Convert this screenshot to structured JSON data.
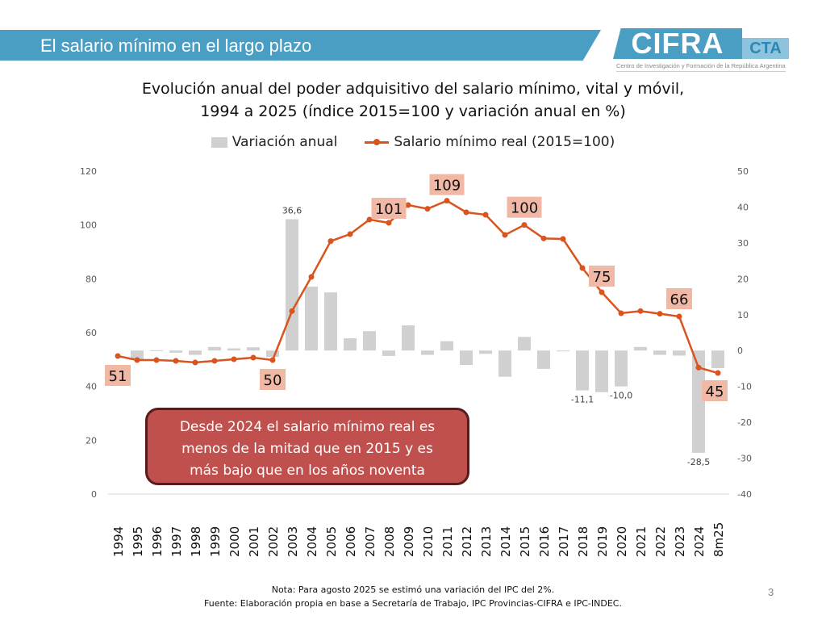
{
  "header": {
    "banner_title": "El salario mínimo en el largo plazo",
    "logo_text": "CIFRA",
    "logo_suffix": "CTA",
    "logo_subtitle": "Centro de Investigación y Formación de la República Argentina"
  },
  "chart_data": {
    "type": "bar+line",
    "title_line1": "Evolución anual del poder adquisitivo del salario mínimo, vital y móvil,",
    "title_line2": "1994 a 2025 (índice 2015=100 y variación anual en %)",
    "legend": {
      "bar": "Variación anual",
      "line": "Salario mínimo real (2015=100)"
    },
    "legend_position": "top",
    "categories": [
      "1994",
      "1995",
      "1996",
      "1997",
      "1998",
      "1999",
      "2000",
      "2001",
      "2002",
      "2003",
      "2004",
      "2005",
      "2006",
      "2007",
      "2008",
      "2009",
      "2010",
      "2011",
      "2012",
      "2013",
      "2014",
      "2015",
      "2016",
      "2017",
      "2018",
      "2019",
      "2020",
      "2021",
      "2022",
      "2023",
      "2024",
      "8m25"
    ],
    "series": [
      {
        "name": "Variación anual",
        "axis": "right",
        "type": "bar",
        "values": [
          null,
          -2.6,
          0.1,
          -0.6,
          -1.2,
          1.0,
          0.6,
          0.9,
          -1.8,
          36.6,
          17.8,
          16.2,
          3.4,
          5.4,
          -1.5,
          7.0,
          -1.2,
          2.6,
          -4.0,
          -0.9,
          -7.3,
          3.8,
          -5.1,
          -0.2,
          -11.1,
          -11.6,
          -10.0,
          1.0,
          -1.2,
          -1.4,
          -28.5,
          -4.9
        ]
      },
      {
        "name": "Salario mínimo real (2015=100)",
        "axis": "left",
        "type": "line",
        "values": [
          51.3,
          49.8,
          49.8,
          49.5,
          48.9,
          49.5,
          50.1,
          50.7,
          49.8,
          68,
          80.7,
          94,
          96.6,
          102,
          100.8,
          107.4,
          106,
          109,
          104.7,
          103.8,
          96.3,
          100,
          95,
          94.8,
          84,
          75,
          67.2,
          68,
          67,
          66,
          47,
          45
        ]
      }
    ],
    "bar_labels": [
      {
        "index": 9,
        "text": "36,6"
      },
      {
        "index": 24,
        "text": "-11,1"
      },
      {
        "index": 26,
        "text": "-10,0"
      },
      {
        "index": 30,
        "text": "-28,5"
      }
    ],
    "line_labels": [
      {
        "index": 0,
        "text": "51"
      },
      {
        "index": 8,
        "text": "50"
      },
      {
        "index": 14,
        "text": "101"
      },
      {
        "index": 17,
        "text": "109"
      },
      {
        "index": 21,
        "text": "100"
      },
      {
        "index": 25,
        "text": "75"
      },
      {
        "index": 29,
        "text": "66"
      },
      {
        "index": 31,
        "text": "45"
      }
    ],
    "left_axis": {
      "ylim": [
        0,
        120
      ],
      "ticks": [
        "0",
        "20",
        "40",
        "60",
        "80",
        "100",
        "120"
      ]
    },
    "right_axis": {
      "ylim": [
        -40,
        50
      ],
      "ticks": [
        "-40",
        "-30",
        "-20",
        "-10",
        "0",
        "10",
        "20",
        "30",
        "40",
        "50"
      ]
    },
    "colors": {
      "bar": "#d0d0d0",
      "line": "#d9541e",
      "label_bg": "#f2b8a6"
    },
    "grid": false
  },
  "callout": {
    "line1": "Desde 2024 el salario mínimo real es",
    "line2": "menos de la mitad que en 2015 y es",
    "line3": "más bajo que en los años noventa"
  },
  "footer": {
    "note": "Nota: Para agosto 2025 se estimó una variación del IPC del 2%.",
    "source": "Fuente: Elaboración propia en base a Secretaría de Trabajo, IPC Provincias-CIFRA e IPC-INDEC.",
    "page_number": "3"
  }
}
